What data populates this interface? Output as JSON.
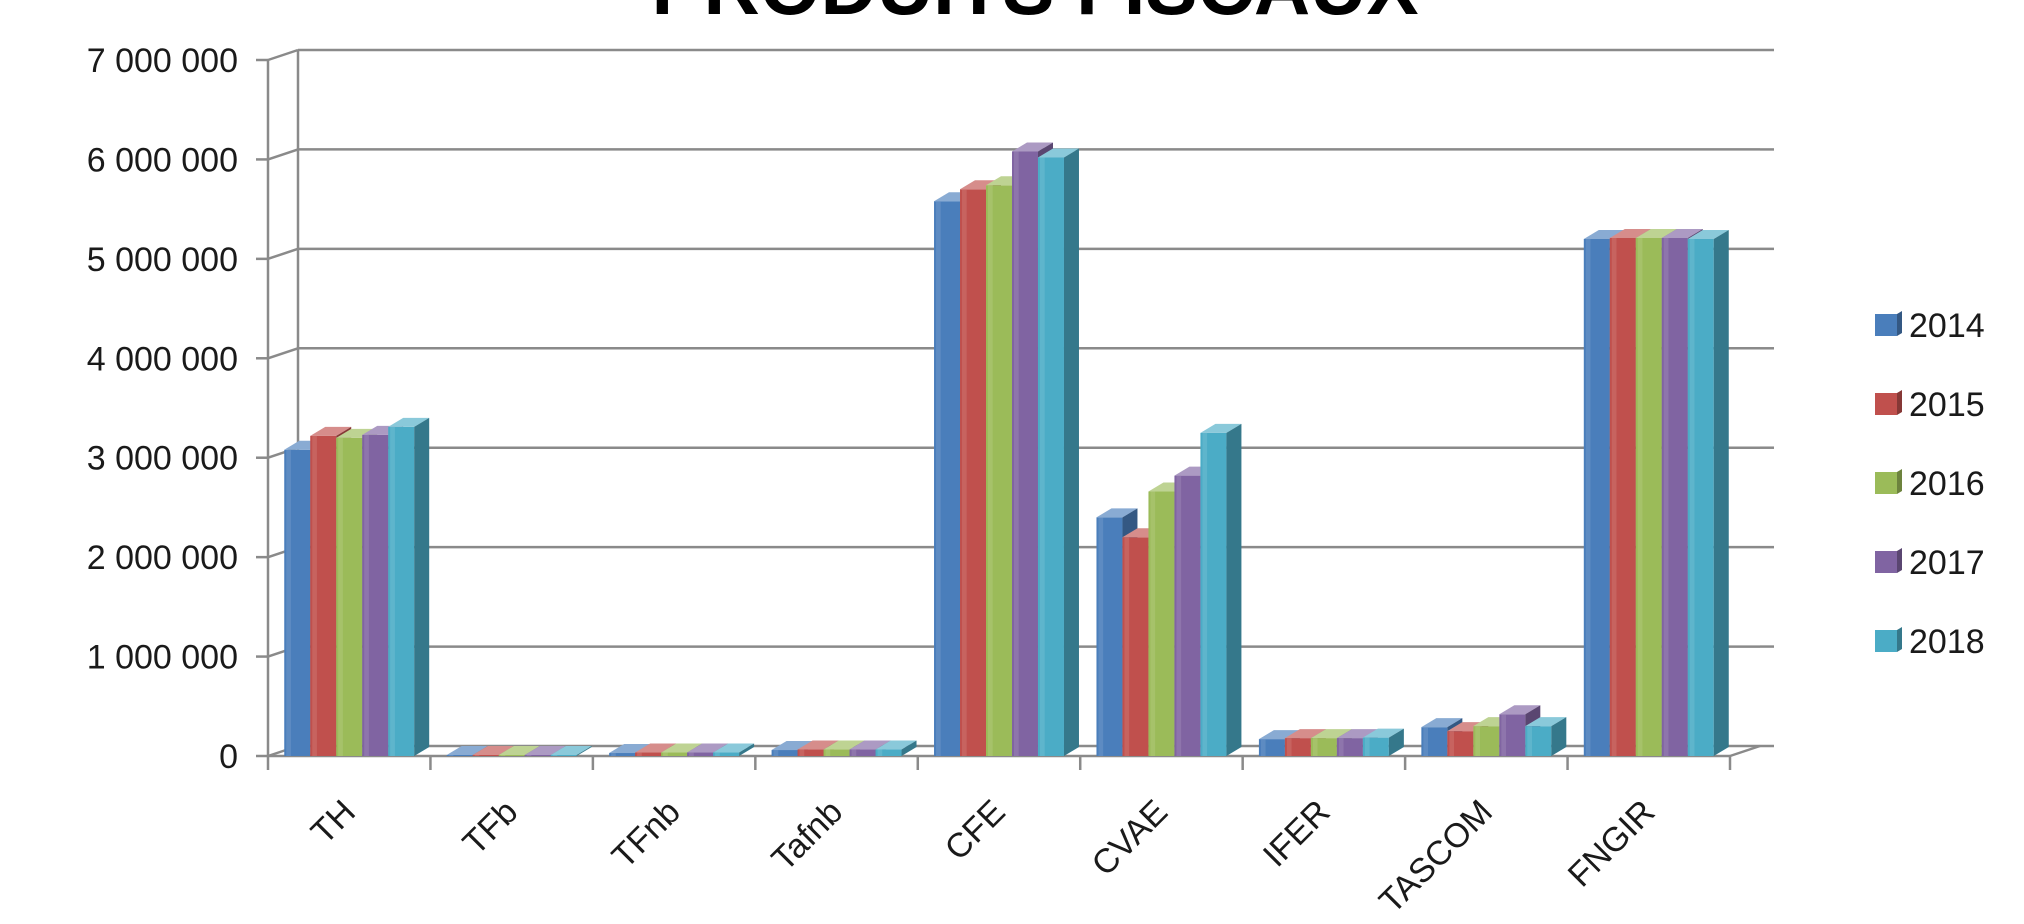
{
  "chart_data": {
    "type": "bar",
    "title": "PRODUITS FISCAUX",
    "xlabel": "",
    "ylabel": "",
    "ylim": [
      0,
      7000000
    ],
    "yticks": [
      0,
      1000000,
      2000000,
      3000000,
      4000000,
      5000000,
      6000000,
      7000000
    ],
    "ytick_labels": [
      "0",
      "1 000 000",
      "2 000 000",
      "3 000 000",
      "4 000 000",
      "5 000 000",
      "6 000 000",
      "7 000 000"
    ],
    "categories": [
      "TH",
      "TFb",
      "TFnb",
      "Tafnb",
      "CFE",
      "CVAE",
      "IFER",
      "TASCOM",
      "FNGIR"
    ],
    "grid": true,
    "legend_position": "right",
    "three_d": true,
    "series": [
      {
        "name": "2014",
        "color": "#4a7ebb",
        "values": [
          3080000,
          5000,
          30000,
          60000,
          5580000,
          2400000,
          170000,
          290000,
          5200000
        ]
      },
      {
        "name": "2015",
        "color": "#c0504d",
        "values": [
          3220000,
          5000,
          35000,
          65000,
          5700000,
          2200000,
          180000,
          250000,
          5210000
        ]
      },
      {
        "name": "2016",
        "color": "#9bbb59",
        "values": [
          3200000,
          5000,
          35000,
          65000,
          5740000,
          2660000,
          180000,
          300000,
          5210000
        ]
      },
      {
        "name": "2017",
        "color": "#8064a2",
        "values": [
          3230000,
          5000,
          35000,
          65000,
          6080000,
          2820000,
          180000,
          420000,
          5210000
        ]
      },
      {
        "name": "2018",
        "color": "#4bacc6",
        "values": [
          3310000,
          5000,
          35000,
          65000,
          6020000,
          3250000,
          185000,
          300000,
          5200000
        ]
      }
    ]
  }
}
